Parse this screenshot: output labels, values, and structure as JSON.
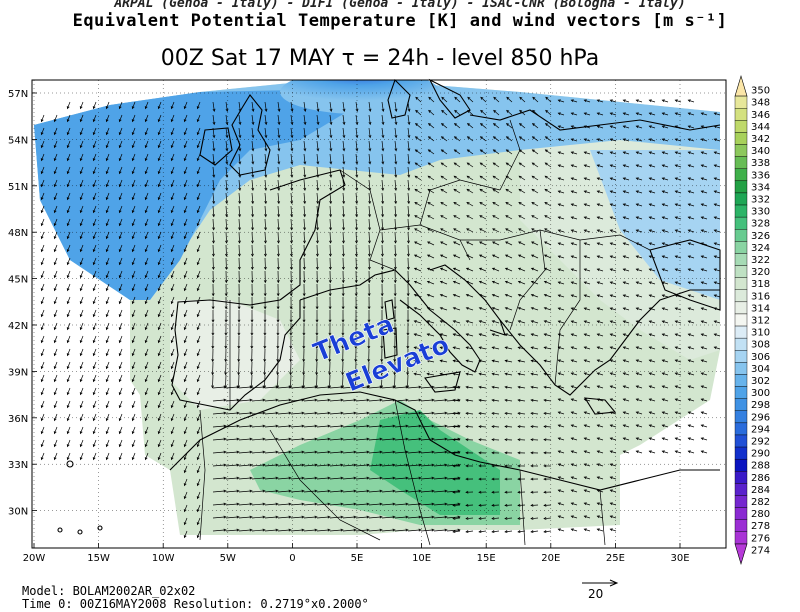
{
  "header": {
    "institutions": "ARPAL (Genoa - Italy)  -  DIFI (Genoa - Italy)  -  ISAC-CNR (Bologna - Italy)",
    "field_title": "Equivalent Potential Temperature [K] and wind vectors [m s⁻¹]",
    "run_line": "00Z Sat 17 MAY  τ = 24h  -  level 850 hPa"
  },
  "map": {
    "lat_labels": [
      "57N",
      "54N",
      "51N",
      "48N",
      "45N",
      "42N",
      "39N",
      "36N",
      "33N",
      "30N"
    ],
    "lon_labels": [
      "20W",
      "15W",
      "10W",
      "5W",
      "0",
      "5E",
      "10E",
      "15E",
      "20E",
      "25E",
      "30E"
    ],
    "annotation_line1": "Theta",
    "annotation_line2": "Elevato",
    "annotation_color": "#1a3fd6"
  },
  "colorbar": {
    "labels": [
      "350",
      "348",
      "346",
      "344",
      "342",
      "340",
      "338",
      "336",
      "334",
      "332",
      "330",
      "328",
      "326",
      "324",
      "322",
      "320",
      "318",
      "316",
      "314",
      "312",
      "310",
      "308",
      "306",
      "304",
      "302",
      "300",
      "298",
      "296",
      "294",
      "292",
      "290",
      "288",
      "286",
      "284",
      "282",
      "280",
      "278",
      "276",
      "274"
    ],
    "colors": [
      "#fbe6a8",
      "#e7e79a",
      "#d4e17f",
      "#bfd96a",
      "#a8d15b",
      "#8dc85c",
      "#67bd55",
      "#3fb04a",
      "#23a145",
      "#1ea655",
      "#2cb467",
      "#45c07c",
      "#68cb90",
      "#8ad4a3",
      "#a6dbb5",
      "#bfe1c3",
      "#d3e6cf",
      "#dceadb",
      "#e8efe6",
      "#f4f6f1",
      "#dcecf6",
      "#c2e1f4",
      "#a6d4f2",
      "#86c4ee",
      "#67b3eb",
      "#4fa3e8",
      "#3f92e4",
      "#3480e0",
      "#2a6cdc",
      "#2150d6",
      "#1230cc",
      "#0a14c0",
      "#3a1ac8",
      "#5a22cc",
      "#7527cf",
      "#8a2ad2",
      "#9b2ed4",
      "#a934d6",
      "#b63ad8"
    ]
  },
  "footer": {
    "model": "Model: BOLAM2002AR_02x02",
    "time": "Time 0: 00Z16MAY2008      Resolution: 0.2719°x0.2000°",
    "ref_vector": "20"
  }
}
